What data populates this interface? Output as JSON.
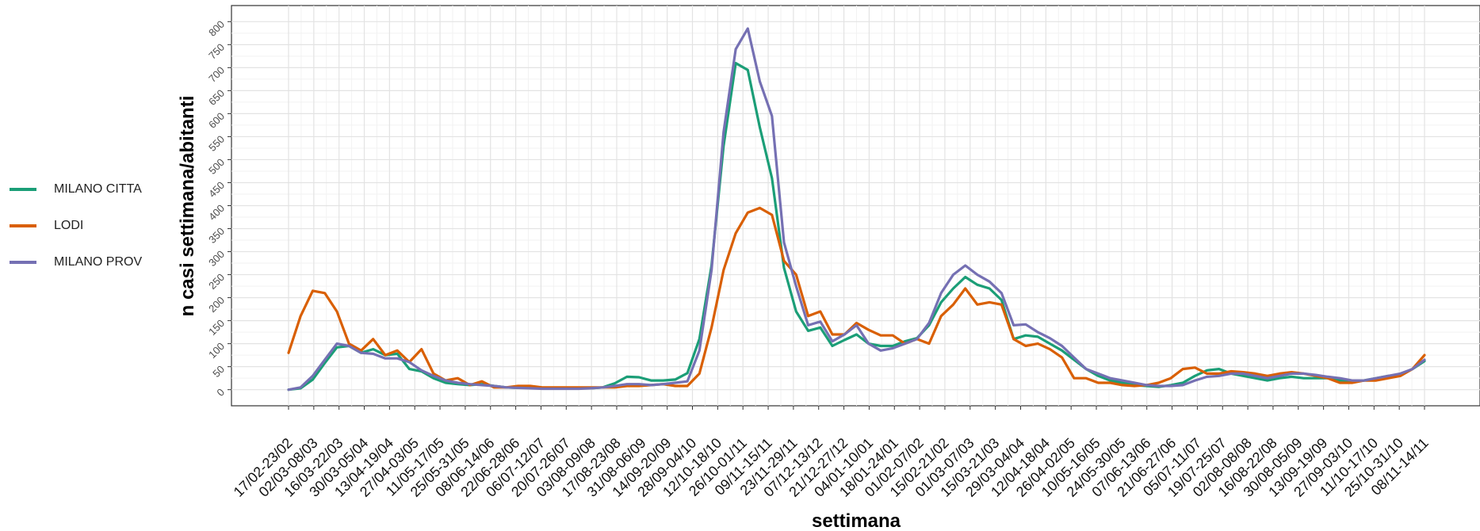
{
  "chart_data": {
    "type": "line",
    "title": "",
    "xlabel": "settimana",
    "ylabel": "n casi settimana/abitanti",
    "ylim": [
      -35,
      835
    ],
    "y_ticks": [
      "0",
      "50",
      "100",
      "150",
      "200",
      "250",
      "300",
      "350",
      "400",
      "450",
      "500",
      "550",
      "600",
      "650",
      "700",
      "750",
      "800"
    ],
    "grid": true,
    "legend_position": "left",
    "x_tick_labels": [
      "17/02-23/02",
      "02/03-08/03",
      "16/03-22/03",
      "30/03-05/04",
      "13/04-19/04",
      "27/04-03/05",
      "11/05-17/05",
      "25/05-31/05",
      "08/06-14/06",
      "22/06-28/06",
      "06/07-12/07",
      "20/07-26/07",
      "03/08-09/08",
      "17/08-23/08",
      "31/08-06/09",
      "14/09-20/09",
      "28/09-04/10",
      "12/10-18/10",
      "26/10-01/11",
      "09/11-15/11",
      "23/11-29/11",
      "07/12-13/12",
      "21/12-27/12",
      "04/01-10/01",
      "18/01-24/01",
      "01/02-07/02",
      "15/02-21/02",
      "01/03-07/03",
      "15/03-21/03",
      "29/03-04/04",
      "12/04-18/04",
      "26/04-02/05",
      "10/05-16/05",
      "24/05-30/05",
      "07/06-13/06",
      "21/06-27/06",
      "05/07-11/07",
      "19/07-25/07",
      "02/08-08/08",
      "16/08-22/08",
      "30/08-05/09",
      "13/09-19/09",
      "27/09-03/10",
      "11/10-17/10",
      "25/10-31/10",
      "08/11-14/11"
    ],
    "series": [
      {
        "name": "MILANO CITTA",
        "color": "#1b9e77",
        "values": [
          0,
          3,
          22,
          58,
          92,
          95,
          80,
          88,
          75,
          78,
          45,
          40,
          25,
          15,
          12,
          10,
          12,
          8,
          5,
          4,
          4,
          3,
          3,
          3,
          3,
          3,
          5,
          14,
          28,
          27,
          20,
          20,
          22,
          36,
          110,
          270,
          530,
          710,
          695,
          570,
          460,
          265,
          170,
          128,
          135,
          95,
          108,
          120,
          100,
          95,
          95,
          105,
          112,
          140,
          190,
          220,
          245,
          228,
          220,
          195,
          110,
          118,
          115,
          100,
          85,
          65,
          45,
          30,
          20,
          15,
          10,
          8,
          6,
          10,
          15,
          30,
          42,
          45,
          35,
          30,
          25,
          20,
          25,
          28,
          25,
          25,
          25,
          20,
          20,
          20,
          25,
          30,
          32,
          45,
          62
        ]
      },
      {
        "name": "LODI",
        "color": "#d95f02",
        "values": [
          80,
          160,
          215,
          210,
          170,
          100,
          85,
          110,
          75,
          85,
          60,
          88,
          35,
          20,
          25,
          10,
          18,
          5,
          5,
          8,
          8,
          5,
          5,
          5,
          5,
          5,
          5,
          5,
          8,
          8,
          10,
          12,
          8,
          8,
          35,
          135,
          260,
          340,
          385,
          395,
          380,
          280,
          250,
          160,
          170,
          120,
          120,
          145,
          130,
          118,
          118,
          100,
          110,
          100,
          160,
          185,
          220,
          185,
          190,
          185,
          110,
          95,
          100,
          88,
          70,
          25,
          25,
          15,
          15,
          10,
          8,
          10,
          15,
          25,
          45,
          48,
          35,
          35,
          40,
          38,
          35,
          30,
          35,
          38,
          35,
          30,
          25,
          15,
          15,
          20,
          20,
          25,
          30,
          45,
          75
        ]
      },
      {
        "name": "MILANO PROV",
        "color": "#7570b3",
        "values": [
          0,
          5,
          30,
          65,
          100,
          95,
          80,
          78,
          68,
          68,
          60,
          42,
          30,
          20,
          15,
          12,
          10,
          8,
          5,
          4,
          3,
          2,
          2,
          2,
          2,
          3,
          5,
          8,
          12,
          12,
          10,
          12,
          15,
          18,
          85,
          260,
          560,
          740,
          785,
          670,
          595,
          320,
          225,
          140,
          148,
          105,
          120,
          140,
          100,
          85,
          90,
          100,
          110,
          145,
          210,
          250,
          270,
          250,
          235,
          210,
          140,
          142,
          125,
          112,
          95,
          70,
          45,
          35,
          25,
          20,
          15,
          10,
          8,
          8,
          10,
          20,
          28,
          30,
          35,
          35,
          30,
          25,
          30,
          35,
          35,
          32,
          28,
          25,
          20,
          20,
          25,
          30,
          35,
          45,
          65
        ]
      }
    ]
  }
}
